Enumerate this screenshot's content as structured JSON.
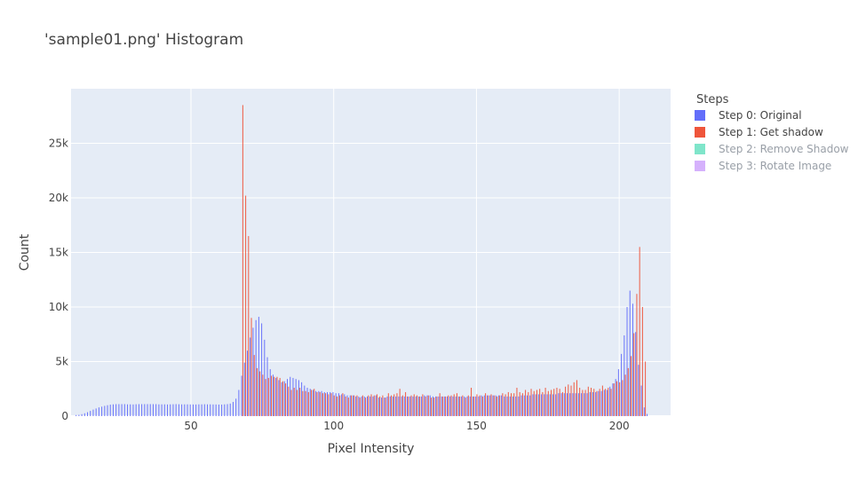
{
  "chart_data": {
    "type": "bar",
    "title": "'sample01.png' Histogram",
    "xlabel": "Pixel Intensity",
    "ylabel": "Count",
    "xlim": [
      8,
      218
    ],
    "ylim": [
      0,
      30000
    ],
    "xticks": [
      50,
      100,
      150,
      200
    ],
    "xtick_labels": [
      "50",
      "100",
      "150",
      "200"
    ],
    "yticks": [
      0,
      5000,
      10000,
      15000,
      20000,
      25000
    ],
    "ytick_labels": [
      "0",
      "5k",
      "10k",
      "15k",
      "20k",
      "25k"
    ],
    "grid": true,
    "legend_position": "right",
    "legend_title": "Steps",
    "series": [
      {
        "name": "Step 0: Original",
        "color": "#636efa",
        "visible": true,
        "start_x": 10,
        "values": [
          100,
          120,
          180,
          260,
          360,
          480,
          600,
          700,
          800,
          870,
          940,
          1000,
          1050,
          1080,
          1100,
          1100,
          1100,
          1100,
          1080,
          1080,
          1070,
          1090,
          1100,
          1100,
          1100,
          1100,
          1100,
          1100,
          1100,
          1080,
          1080,
          1080,
          1070,
          1080,
          1090,
          1100,
          1090,
          1080,
          1080,
          1080,
          1070,
          1070,
          1070,
          1080,
          1080,
          1090,
          1080,
          1080,
          1070,
          1070,
          1060,
          1060,
          1080,
          1100,
          1150,
          1300,
          1600,
          2400,
          3700,
          4900,
          6000,
          7200,
          8100,
          8800,
          9100,
          8500,
          7000,
          5400,
          4300,
          3800,
          3500,
          3300,
          3100,
          3200,
          3400,
          3600,
          3500,
          3400,
          3300,
          3100,
          2800,
          2600,
          2500,
          2400,
          2300,
          2300,
          2300,
          2200,
          2200,
          2200,
          2200,
          2100,
          2100,
          2000,
          2000,
          1900,
          1900,
          1900,
          1800,
          1800,
          1800,
          1800,
          1800,
          1800,
          1800,
          1900,
          1700,
          1700,
          1700,
          1800,
          1800,
          1800,
          1800,
          1800,
          1800,
          1800,
          1800,
          1800,
          1800,
          1800,
          1800,
          1800,
          1900,
          1900,
          1900,
          1800,
          1800,
          1800,
          1800,
          1800,
          1800,
          1800,
          1800,
          1800,
          1800,
          1800,
          1800,
          1800,
          1800,
          1800,
          1800,
          1800,
          1900,
          1900,
          1900,
          1900,
          1900,
          1900,
          1900,
          1900,
          1800,
          1800,
          1800,
          1800,
          1800,
          1800,
          1900,
          1900,
          1900,
          1900,
          2000,
          2000,
          2000,
          2000,
          2000,
          2000,
          2000,
          2000,
          2000,
          2100,
          2100,
          2100,
          2100,
          2100,
          2100,
          2100,
          2100,
          2100,
          2100,
          2100,
          2200,
          2200,
          2200,
          2300,
          2300,
          2400,
          2400,
          2700,
          3000,
          3400,
          4300,
          5700,
          7400,
          10000,
          11500,
          10300,
          7700,
          4700,
          2800,
          800,
          200
        ]
      },
      {
        "name": "Step 1: Get shadow",
        "color": "#ef553b",
        "visible": true,
        "start_x": 68,
        "values": [
          28500,
          20200,
          16500,
          9000,
          5600,
          4400,
          4100,
          3800,
          3400,
          3500,
          3700,
          3600,
          3600,
          3500,
          3200,
          3000,
          2700,
          2400,
          2600,
          2400,
          2600,
          2300,
          2300,
          2200,
          2400,
          2500,
          2200,
          2200,
          2100,
          2100,
          2000,
          2100,
          1900,
          1800,
          1900,
          2100,
          1800,
          1700,
          1900,
          1900,
          1900,
          1700,
          1900,
          1700,
          1900,
          2000,
          1900,
          2000,
          1800,
          1900,
          1700,
          2100,
          1900,
          2000,
          2100,
          2500,
          1900,
          2200,
          1800,
          1900,
          2000,
          1900,
          1800,
          2000,
          1800,
          1900,
          1700,
          1700,
          1800,
          2100,
          1800,
          1800,
          1900,
          1900,
          2000,
          2100,
          1800,
          1900,
          1700,
          1900,
          2600,
          1800,
          2000,
          1900,
          1800,
          2100,
          1900,
          2000,
          1900,
          1800,
          1900,
          2100,
          2000,
          2200,
          2100,
          2100,
          2600,
          2200,
          2100,
          2400,
          2200,
          2500,
          2300,
          2400,
          2500,
          2200,
          2600,
          2300,
          2400,
          2500,
          2600,
          2500,
          2200,
          2700,
          2900,
          2800,
          3100,
          3300,
          2600,
          2400,
          2400,
          2700,
          2600,
          2500,
          2300,
          2500,
          2800,
          2500,
          2600,
          2500,
          3000,
          3200,
          3100,
          3300,
          3800,
          4400,
          5500,
          7600,
          11200,
          15500,
          10000,
          5000
        ]
      },
      {
        "name": "Step 2: Remove Shadow",
        "color": "#00cc96",
        "visible": false,
        "start_x": 0,
        "values": []
      },
      {
        "name": "Step 3: Rotate Image",
        "color": "#ab63fa",
        "visible": false,
        "start_x": 0,
        "values": []
      }
    ]
  }
}
